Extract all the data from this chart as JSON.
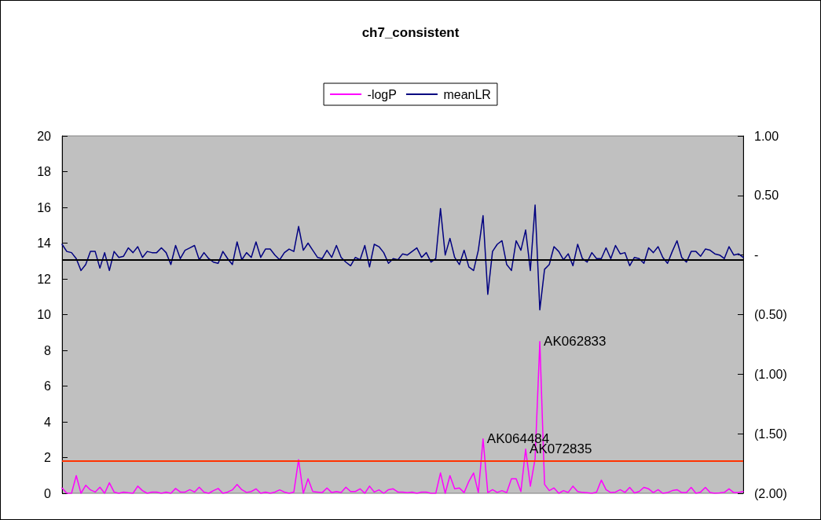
{
  "chart_data": {
    "type": "line",
    "title": "ch7_consistent",
    "categories": [
      null,
      null,
      null,
      null,
      null,
      null,
      null,
      null,
      null,
      null,
      null,
      null,
      null,
      null,
      null,
      null,
      null,
      null,
      null,
      null,
      null,
      null,
      null,
      null,
      null,
      null,
      null,
      null,
      null,
      null,
      null,
      null,
      null,
      null,
      null,
      null,
      null,
      null,
      null,
      null,
      null,
      null,
      null,
      null,
      null,
      null,
      null,
      null,
      null,
      null,
      null,
      null,
      null,
      null,
      null,
      null,
      null,
      null,
      null,
      null,
      null,
      null,
      null,
      null,
      null,
      null,
      null,
      null,
      null,
      null,
      null,
      null,
      null,
      null,
      null,
      null,
      null,
      null,
      null,
      null,
      null,
      null,
      null,
      null,
      null,
      null,
      null,
      null,
      null,
      null,
      null,
      null,
      null,
      null,
      null,
      null,
      null,
      null,
      null,
      null,
      null,
      null,
      null,
      null,
      null,
      null,
      null,
      null,
      null,
      null,
      null,
      null,
      null,
      null,
      null,
      null,
      null,
      null,
      null,
      null,
      null,
      null,
      null,
      null,
      null,
      null,
      null,
      null,
      null,
      null,
      null,
      null,
      null,
      null,
      null,
      null,
      null,
      null,
      null,
      null,
      null,
      null,
      null,
      null,
      null
    ],
    "series": [
      {
        "name": "-logP",
        "color": "#ff00ff",
        "values": [
          0.3,
          0,
          0,
          0.99,
          0,
          0.45,
          0.19,
          0.07,
          0.34,
          0,
          0.59,
          0.07,
          0,
          0.07,
          0.03,
          0,
          0.4,
          0.15,
          0,
          0.07,
          0.07,
          0,
          0.07,
          0,
          0.27,
          0.07,
          0.07,
          0.2,
          0.07,
          0.34,
          0.07,
          0,
          0.15,
          0.27,
          0,
          0.07,
          0.19,
          0.49,
          0.2,
          0.05,
          0.1,
          0.25,
          0,
          0.07,
          0,
          0.07,
          0.19,
          0.07,
          0,
          0.07,
          1.88,
          0,
          0.81,
          0.1,
          0.07,
          0.04,
          0.3,
          0.04,
          0.1,
          0.04,
          0.34,
          0.1,
          0.1,
          0.25,
          0,
          0.4,
          0.07,
          0.19,
          0,
          0.2,
          0.25,
          0.07,
          0.07,
          0.03,
          0.07,
          0,
          0.07,
          0.07,
          0,
          0,
          1.14,
          0,
          0.99,
          0.25,
          0.3,
          0.04,
          0.67,
          1.14,
          0.04,
          3.04,
          0.04,
          0.2,
          0.05,
          0.15,
          0.04,
          0.81,
          0.81,
          0.1,
          2.47,
          0.4,
          1.93,
          8.49,
          0.5,
          0.15,
          0.3,
          0,
          0.15,
          0.05,
          0.4,
          0.1,
          0.05,
          0.03,
          0,
          0.07,
          0.74,
          0.2,
          0.04,
          0.07,
          0.2,
          0.05,
          0.33,
          0.02,
          0.1,
          0.33,
          0.25,
          0.04,
          0.2,
          0,
          0.04,
          0.15,
          0.2,
          0.04,
          0.04,
          0.33,
          0,
          0.07,
          0.33,
          0.04,
          0,
          0.02,
          0.05,
          0.25,
          0.04,
          0.04,
          0.1
        ],
        "value_labels": [
          null,
          null,
          null,
          null,
          null,
          null,
          null,
          null,
          null,
          null,
          null,
          null,
          null,
          null,
          null,
          null,
          null,
          null,
          null,
          null,
          null,
          null,
          null,
          null,
          null,
          null,
          null,
          null,
          null,
          null,
          null,
          null,
          null,
          null,
          null,
          null,
          null,
          null,
          null,
          null,
          null,
          null,
          null,
          null,
          null,
          null,
          null,
          null,
          null,
          null,
          null,
          null,
          null,
          null,
          null,
          null,
          null,
          null,
          null,
          null,
          null,
          null,
          null,
          null,
          null,
          null,
          null,
          null,
          null,
          null,
          null,
          null,
          null,
          null,
          null,
          null,
          null,
          null,
          null,
          null,
          null,
          null,
          null,
          null,
          null,
          null,
          null,
          null,
          null,
          "AK064484",
          null,
          null,
          null,
          null,
          null,
          null,
          null,
          null,
          "AK072835",
          null,
          null,
          "AK062833",
          null,
          null,
          null,
          null,
          null,
          null,
          null,
          null,
          null,
          null,
          null,
          null,
          null,
          null,
          null,
          null,
          null,
          null,
          null,
          null,
          null,
          null,
          null,
          null,
          null,
          null,
          null,
          null,
          null,
          null,
          null,
          null,
          null,
          null,
          null,
          null,
          null,
          null,
          null,
          null,
          null,
          null,
          null
        ]
      },
      {
        "name": "meanLR",
        "color": "#000080",
        "axis": "y2",
        "values": [
          0.09,
          0.03,
          0.02,
          -0.03,
          -0.13,
          -0.08,
          0.03,
          0.03,
          -0.11,
          0.02,
          -0.13,
          0.03,
          -0.02,
          -0.01,
          0.06,
          0.02,
          0.07,
          -0.02,
          0.03,
          0.02,
          0.02,
          0.06,
          0.02,
          -0.08,
          0.08,
          -0.03,
          0.04,
          0.06,
          0.08,
          -0.04,
          0.02,
          -0.03,
          -0.06,
          -0.07,
          0.03,
          -0.03,
          -0.08,
          0.11,
          -0.04,
          0.02,
          -0.02,
          0.11,
          -0.02,
          0.05,
          0.05,
          0.0,
          -0.04,
          0.02,
          0.05,
          0.03,
          0.24,
          0.04,
          0.1,
          0.04,
          -0.02,
          -0.03,
          0.04,
          -0.02,
          0.08,
          -0.02,
          -0.06,
          -0.09,
          -0.02,
          -0.04,
          0.08,
          -0.1,
          0.09,
          0.07,
          0.02,
          -0.07,
          -0.03,
          -0.04,
          0.01,
          0.0,
          0.03,
          0.06,
          -0.02,
          0.02,
          -0.06,
          -0.03,
          0.39,
          0.0,
          0.14,
          -0.02,
          -0.08,
          0.04,
          -0.1,
          -0.13,
          0.04,
          0.33,
          -0.33,
          0.03,
          0.09,
          0.12,
          -0.08,
          -0.13,
          0.12,
          0.04,
          0.21,
          -0.13,
          0.42,
          -0.46,
          -0.12,
          -0.08,
          0.07,
          0.03,
          -0.04,
          0.01,
          -0.09,
          0.09,
          -0.03,
          -0.06,
          0.02,
          -0.03,
          -0.03,
          0.06,
          -0.03,
          0.08,
          0.01,
          0.02,
          -0.09,
          -0.02,
          -0.03,
          -0.07,
          0.06,
          0.02,
          0.07,
          -0.02,
          -0.07,
          0.03,
          0.12,
          -0.02,
          -0.06,
          0.03,
          0.03,
          -0.01,
          0.05,
          0.04,
          0.01,
          0.0,
          -0.03,
          0.07,
          0.0,
          0.01,
          -0.02
        ]
      }
    ],
    "ylim": [
      0,
      20
    ],
    "yticks": [
      0,
      2,
      4,
      6,
      8,
      10,
      12,
      14,
      16,
      18,
      20
    ],
    "y2lim": [
      -2,
      1
    ],
    "y2ticks": [
      {
        "value": 1,
        "label": "1.00"
      },
      {
        "value": 0.5,
        "label": "0.50"
      },
      {
        "value": 0,
        "label": "-"
      },
      {
        "value": -0.5,
        "label": "(0.50)"
      },
      {
        "value": -1,
        "label": "(1.00)"
      },
      {
        "value": -1.5,
        "label": "(1.50)"
      },
      {
        "value": -2,
        "label": "(2.00)"
      }
    ],
    "ref_lines": [
      {
        "axis": "y2",
        "value": -0.04,
        "color": "#000000"
      },
      {
        "axis": "y",
        "value": 1.8,
        "color": "#ff3300"
      }
    ],
    "grid": false,
    "legend": "top",
    "marker": "none",
    "line_style": "solid"
  }
}
